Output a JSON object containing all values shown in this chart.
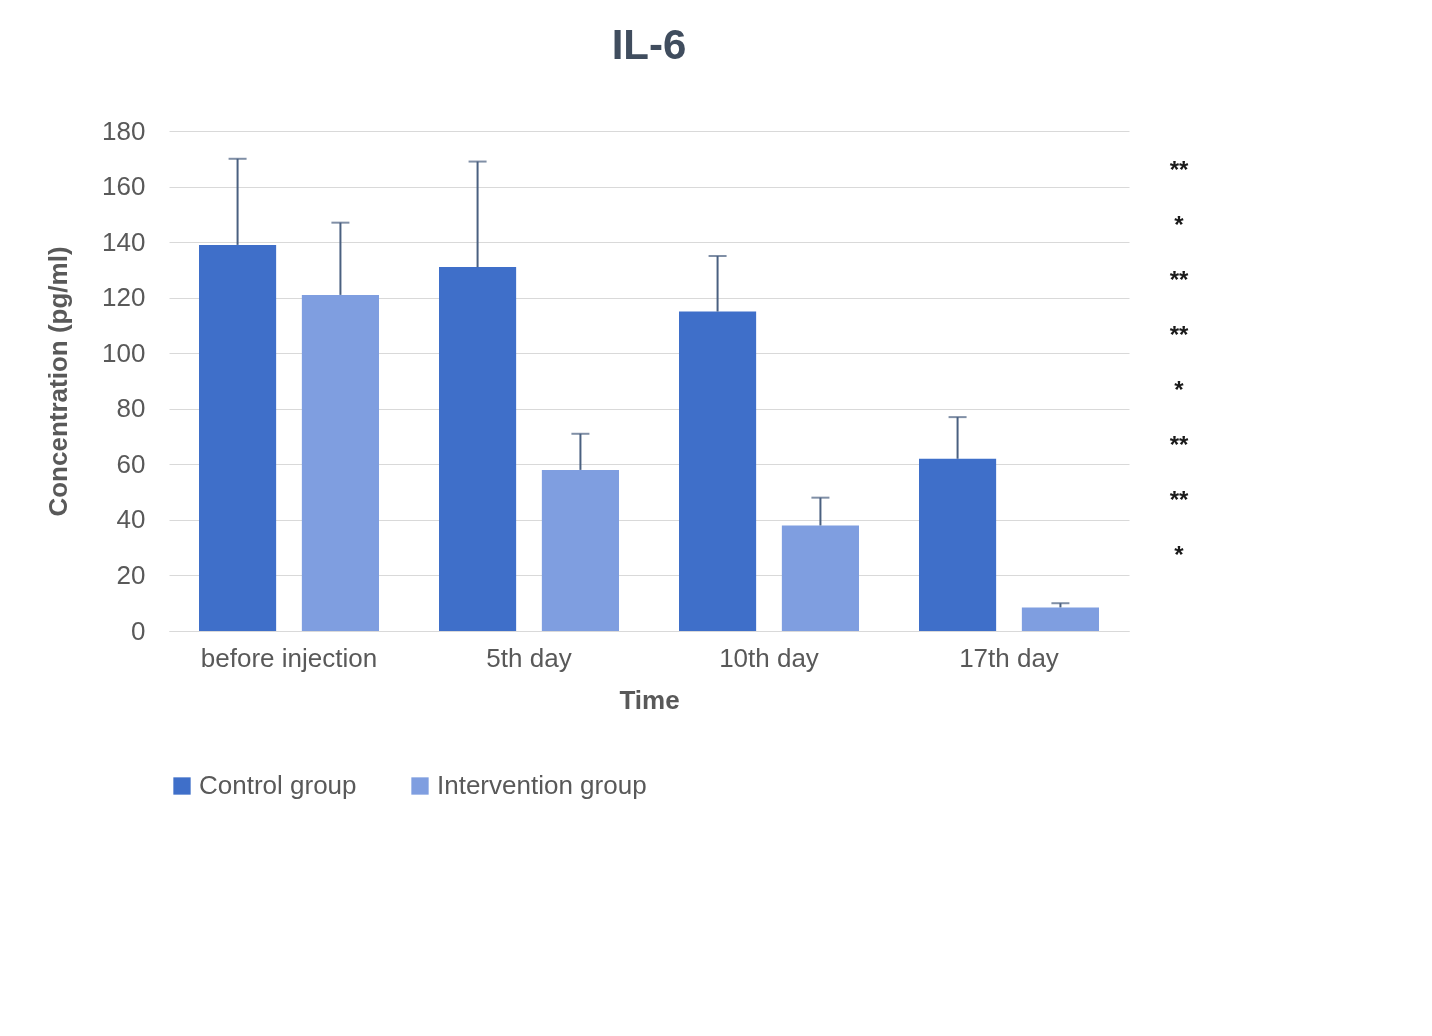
{
  "chart_data": {
    "type": "bar",
    "title": "IL-6",
    "xlabel": "Time",
    "ylabel": "Concentration (pg/ml)",
    "categories": [
      "before injection",
      "5th day",
      "10th day",
      "17th day"
    ],
    "series": [
      {
        "name": "Control group",
        "color": "#3f6fc9",
        "values": [
          139,
          131,
          115,
          62
        ],
        "errors": [
          [
            139,
            170
          ],
          [
            131,
            169
          ],
          [
            115,
            135
          ],
          [
            62,
            77
          ]
        ]
      },
      {
        "name": "Intervention group",
        "color": "#7f9ee0",
        "values": [
          121,
          58,
          38,
          8.5
        ],
        "errors": [
          [
            121,
            147
          ],
          [
            58,
            71
          ],
          [
            38,
            48
          ],
          [
            8.5,
            10
          ]
        ]
      }
    ],
    "ylim": [
      0,
      180
    ],
    "yticks": [
      0,
      20,
      40,
      60,
      80,
      100,
      120,
      140,
      160,
      180
    ],
    "grid": "y",
    "legend": "bottom",
    "annotations": [
      "**",
      "*",
      "**",
      "**",
      "*",
      "**",
      "**",
      "*"
    ]
  }
}
